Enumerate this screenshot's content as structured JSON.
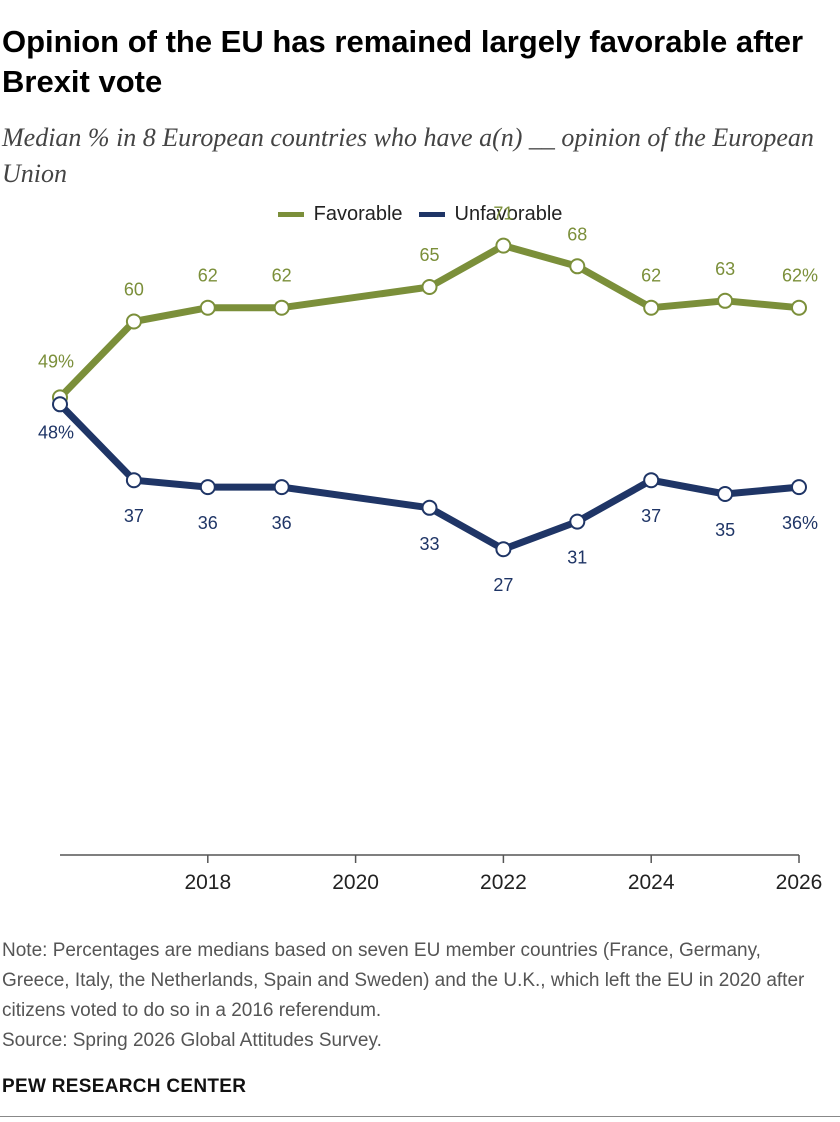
{
  "title": "Opinion of the EU has remained largely favorable after Brexit vote",
  "subtitle": "Median % in 8 European countries who have a(n) __ opinion of the European Union",
  "note": "Note: Percentages are medians based on seven EU member countries (France, Germany, Greece, Italy, the Netherlands, Spain and Sweden) and the U.K., which left the EU in 2020 after citizens voted to do so in a 2016 referendum.",
  "source": "Source: Spring 2026 Global Attitudes Survey.",
  "footer": "PEW RESEARCH CENTER",
  "colors": {
    "favorable": "#7b8f3a",
    "unfavorable": "#1f3566",
    "axis": "#555555"
  },
  "chart_data": {
    "type": "line",
    "x": [
      2016,
      2017,
      2018,
      2019,
      2021,
      2022,
      2023,
      2024,
      2025,
      2026
    ],
    "x_ticks": [
      2018,
      2020,
      2022,
      2024,
      2026
    ],
    "xlim": [
      2016,
      2026
    ],
    "ylim": [
      0,
      100
    ],
    "legend_position": "top-center",
    "grid": false,
    "series": [
      {
        "name": "Favorable",
        "color_key": "favorable",
        "values": [
          49,
          60,
          62,
          62,
          65,
          71,
          68,
          62,
          63,
          62
        ],
        "labels": [
          "49%",
          "60",
          "62",
          "62",
          "65",
          "71",
          "68",
          "62",
          "63",
          "62%"
        ]
      },
      {
        "name": "Unfavorable",
        "color_key": "unfavorable",
        "values": [
          48,
          37,
          36,
          36,
          33,
          27,
          31,
          37,
          35,
          36
        ],
        "labels": [
          "48%",
          "37",
          "36",
          "36",
          "33",
          "27",
          "31",
          "37",
          "35",
          "36%"
        ]
      }
    ]
  }
}
